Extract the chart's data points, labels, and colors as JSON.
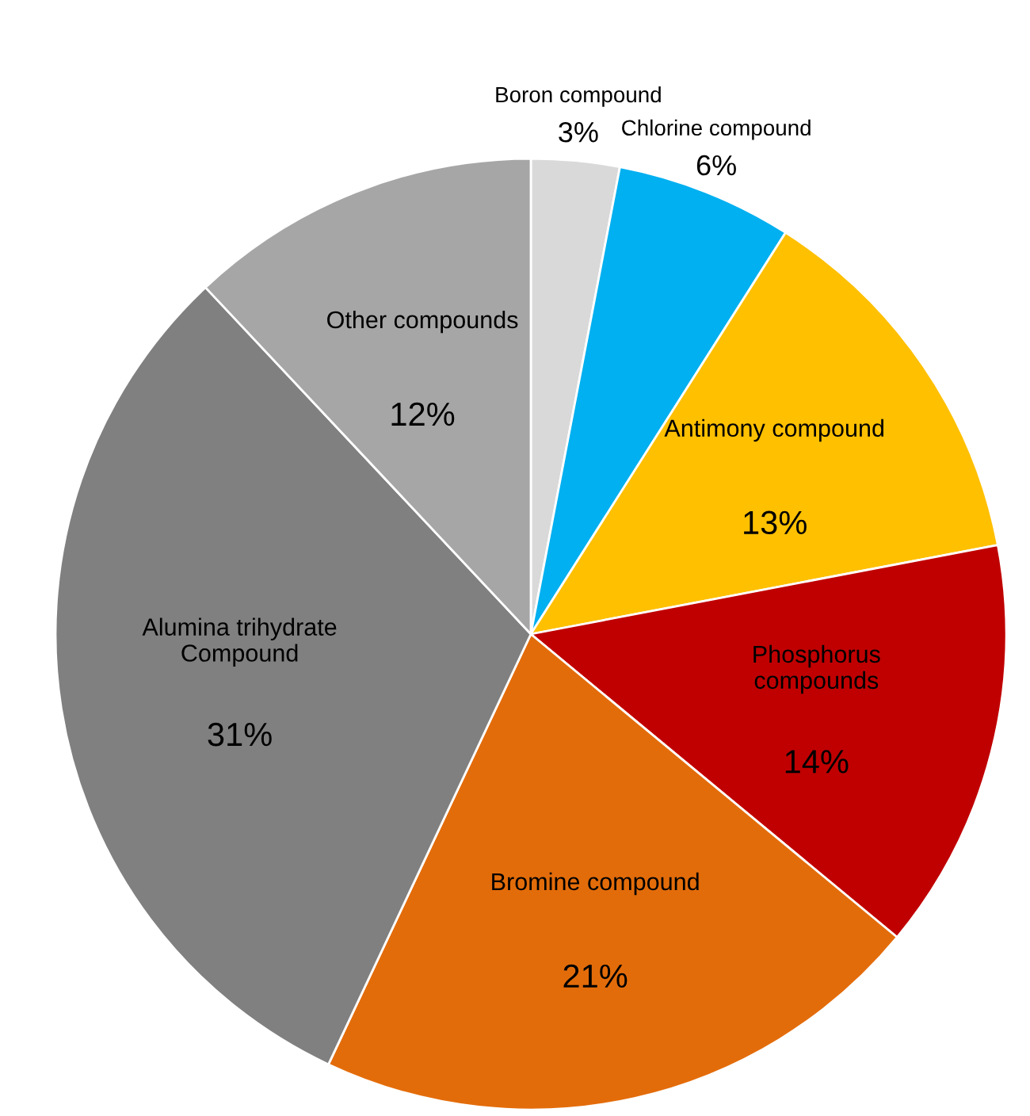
{
  "chart_data": {
    "type": "pie",
    "categories": [
      "Boron compound",
      "Chlorine compound",
      "Antimony compound",
      "Phosphorus\ncompounds",
      "Bromine compound",
      "Alumina trihydrate\nCompound",
      "Other compounds"
    ],
    "values": [
      3,
      6,
      13,
      14,
      21,
      31,
      12
    ],
    "value_labels": [
      "3%",
      "6%",
      "13%",
      "14%",
      "21%",
      "31%",
      "12%"
    ],
    "colors": [
      "#d9d9d9",
      "#00b0f0",
      "#ffc000",
      "#c00000",
      "#e36c0a",
      "#808080",
      "#a6a6a6"
    ]
  }
}
